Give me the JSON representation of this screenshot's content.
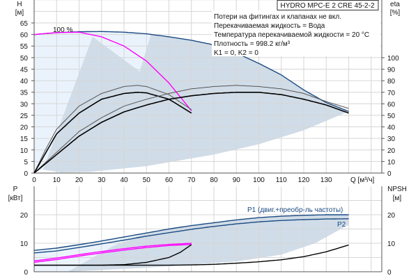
{
  "title": "HYDRO MPC-E 2 CRE 45-2-2",
  "notes": [
    "Потери на фитингах и клапанах не вкл.",
    "Перекачиваемая жидкость = Вода",
    "Температура перекачиваемой жидкости = 20 °C",
    "Плотность = 998.2 кг/м³",
    "K1 = 0, K2 = 0"
  ],
  "colors": {
    "max_curve": "#1a4a80",
    "one_pump": "#ff00ff",
    "eta": "#222222",
    "region_dark": "#d0dce8",
    "region_light": "#eaf3fc",
    "npsh": "#000000"
  },
  "chart_data": [
    {
      "type": "line",
      "xlabel": "Q [м³/ч]",
      "ylabel_unit": "[м]",
      "ylabel": "H",
      "y2label": "eta",
      "y2label_unit": "[%]",
      "xlim": [
        0,
        155
      ],
      "ylim": [
        0,
        75
      ],
      "y2lim": [
        0,
        100
      ],
      "xticks": [
        0,
        10,
        20,
        30,
        40,
        50,
        60,
        70,
        80,
        90,
        100,
        110,
        120,
        130
      ],
      "yticks": [
        0,
        5,
        10,
        15,
        20,
        25,
        30,
        35,
        40,
        45,
        50,
        55,
        60,
        65
      ],
      "y2ticks": [
        0,
        10,
        20,
        30,
        40,
        50,
        60,
        70,
        80,
        90,
        100
      ],
      "grid": true,
      "annotation": "100 %",
      "series": [
        {
          "role": "H max (2 pumps)",
          "axis": "H",
          "color": "#1a4a80",
          "points": [
            [
              0,
              60
            ],
            [
              10,
              60.8
            ],
            [
              20,
              61.2
            ],
            [
              30,
              61.3
            ],
            [
              40,
              61
            ],
            [
              50,
              60.3
            ],
            [
              60,
              59
            ],
            [
              70,
              57.5
            ],
            [
              80,
              55.5
            ],
            [
              90,
              52
            ],
            [
              100,
              47.5
            ],
            [
              110,
              42.5
            ],
            [
              120,
              36
            ],
            [
              130,
              30.5
            ],
            [
              140,
              26.7
            ]
          ]
        },
        {
          "role": "H 100% (1 pump)",
          "axis": "H",
          "color": "#ff00ff",
          "points": [
            [
              0,
              60
            ],
            [
              10,
              60.8
            ],
            [
              20,
              61
            ],
            [
              30,
              59
            ],
            [
              40,
              55
            ],
            [
              50,
              48.5
            ],
            [
              60,
              39
            ],
            [
              65,
              33
            ],
            [
              70,
              27
            ]
          ]
        },
        {
          "role": "eta 1 pump (upper)",
          "axis": "eta",
          "color": "#555555",
          "points": [
            [
              0,
              0
            ],
            [
              5,
              20
            ],
            [
              10,
              38
            ],
            [
              20,
              58
            ],
            [
              30,
              69
            ],
            [
              40,
              75
            ],
            [
              46,
              76
            ],
            [
              50,
              75
            ],
            [
              60,
              68
            ],
            [
              70,
              55
            ]
          ]
        },
        {
          "role": "eta 1 pump (lower)",
          "axis": "eta",
          "color": "#000000",
          "points": [
            [
              0,
              0
            ],
            [
              10,
              34
            ],
            [
              20,
              52
            ],
            [
              30,
              64
            ],
            [
              40,
              69
            ],
            [
              46,
              70
            ],
            [
              50,
              69.5
            ],
            [
              60,
              64
            ],
            [
              70,
              52
            ]
          ]
        },
        {
          "role": "eta 2 pumps (upper)",
          "axis": "eta",
          "color": "#555555",
          "points": [
            [
              0,
              0
            ],
            [
              10,
              18
            ],
            [
              20,
              36
            ],
            [
              30,
              48
            ],
            [
              40,
              58
            ],
            [
              50,
              64
            ],
            [
              60,
              69
            ],
            [
              70,
              73
            ],
            [
              80,
              75
            ],
            [
              90,
              76
            ],
            [
              100,
              75
            ],
            [
              110,
              73
            ],
            [
              120,
              69
            ],
            [
              130,
              62
            ],
            [
              140,
              56
            ]
          ]
        },
        {
          "role": "eta 2 pumps (lower)",
          "axis": "eta",
          "color": "#000000",
          "points": [
            [
              0,
              0
            ],
            [
              10,
              16
            ],
            [
              20,
              32
            ],
            [
              30,
              44
            ],
            [
              40,
              53
            ],
            [
              50,
              59
            ],
            [
              60,
              64
            ],
            [
              70,
              67
            ],
            [
              80,
              69
            ],
            [
              90,
              70
            ],
            [
              100,
              70
            ],
            [
              110,
              68
            ],
            [
              120,
              64
            ],
            [
              130,
              59
            ],
            [
              140,
              52
            ]
          ]
        }
      ]
    },
    {
      "type": "line",
      "ylabel": "P",
      "ylabel_unit": "[кВт]",
      "y2label": "NPSH",
      "y2label_unit": "[м]",
      "xlim": [
        0,
        155
      ],
      "ylim": [
        0,
        30
      ],
      "y2lim": [
        0,
        30
      ],
      "yticks": [
        0,
        10,
        20
      ],
      "y2ticks": [
        0,
        10,
        20
      ],
      "grid": true,
      "series": [
        {
          "name": "P1 (двиг.+преобр-ль частоты)",
          "axis": "P",
          "color": "#1a4a80",
          "points": [
            [
              0,
              7.5
            ],
            [
              10,
              8.3
            ],
            [
              20,
              9.5
            ],
            [
              30,
              10.8
            ],
            [
              40,
              12.2
            ],
            [
              50,
              13.6
            ],
            [
              60,
              15
            ],
            [
              70,
              16.2
            ],
            [
              80,
              17.2
            ],
            [
              90,
              18.2
            ],
            [
              100,
              19
            ],
            [
              110,
              19.5
            ],
            [
              120,
              19.8
            ],
            [
              130,
              20
            ],
            [
              140,
              20
            ]
          ]
        },
        {
          "name": "P2",
          "axis": "P",
          "color": "#1a4a80",
          "points": [
            [
              0,
              6.6
            ],
            [
              10,
              7.3
            ],
            [
              20,
              8.5
            ],
            [
              30,
              9.8
            ],
            [
              40,
              11.1
            ],
            [
              50,
              12.5
            ],
            [
              60,
              13.7
            ],
            [
              70,
              14.9
            ],
            [
              80,
              15.9
            ],
            [
              90,
              16.8
            ],
            [
              100,
              17.5
            ],
            [
              110,
              18
            ],
            [
              120,
              18.3
            ],
            [
              130,
              18.5
            ],
            [
              140,
              18.6
            ]
          ]
        },
        {
          "role": "P1 1 pump",
          "axis": "P",
          "color": "#ff00ff",
          "points": [
            [
              0,
              3.8
            ],
            [
              10,
              4.8
            ],
            [
              20,
              6
            ],
            [
              30,
              7.1
            ],
            [
              40,
              8.1
            ],
            [
              50,
              9
            ],
            [
              60,
              9.6
            ],
            [
              70,
              10
            ]
          ]
        },
        {
          "role": "P2 1 pump",
          "axis": "P",
          "color": "#ff00ff",
          "points": [
            [
              0,
              3.3
            ],
            [
              10,
              4.3
            ],
            [
              20,
              5.5
            ],
            [
              30,
              6.6
            ],
            [
              40,
              7.6
            ],
            [
              50,
              8.5
            ],
            [
              60,
              9.2
            ],
            [
              70,
              9.6
            ]
          ]
        },
        {
          "role": "NPSH 1 pump",
          "axis": "NPSH",
          "color": "#000000",
          "points": [
            [
              0,
              2.3
            ],
            [
              30,
              2.3
            ],
            [
              40,
              2.5
            ],
            [
              50,
              3.3
            ],
            [
              60,
              5
            ],
            [
              65,
              6.8
            ],
            [
              70,
              9.5
            ]
          ]
        },
        {
          "role": "NPSH 2 pumps",
          "axis": "NPSH",
          "color": "#000000",
          "points": [
            [
              0,
              2.3
            ],
            [
              60,
              2.3
            ],
            [
              70,
              2.4
            ],
            [
              80,
              2.6
            ],
            [
              90,
              3
            ],
            [
              100,
              3.5
            ],
            [
              110,
              4.2
            ],
            [
              120,
              5.3
            ],
            [
              130,
              7
            ],
            [
              140,
              9.4
            ]
          ]
        }
      ]
    }
  ]
}
